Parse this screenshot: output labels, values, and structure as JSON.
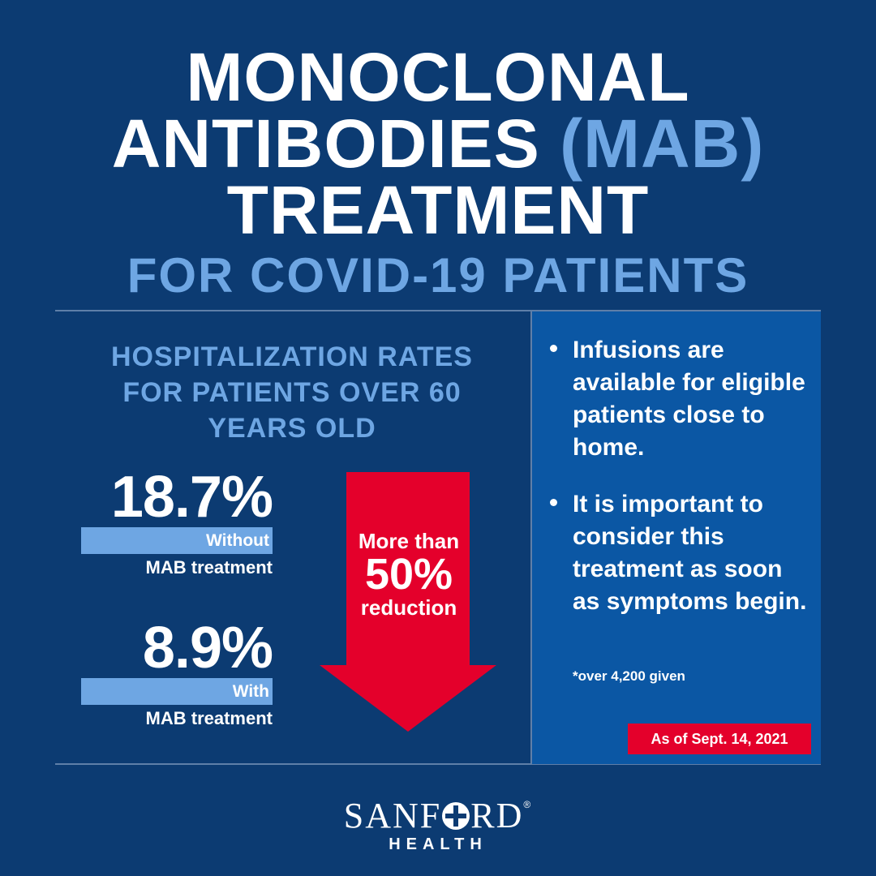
{
  "title": {
    "line1": "MONOCLONAL",
    "line2_main": "ANTIBODIES",
    "line2_accent": "(MAB)",
    "line3": "TREATMENT",
    "subtitle": "FOR COVID-19 PATIENTS"
  },
  "stats": {
    "heading": "HOSPITALIZATION RATES FOR PATIENTS OVER 60 YEARS OLD",
    "without": {
      "value": "18.7%",
      "bar_label": "Without",
      "caption": "MAB treatment"
    },
    "with": {
      "value": "8.9%",
      "bar_label": "With",
      "caption": "MAB treatment"
    }
  },
  "arrow": {
    "line1": "More than",
    "line2": "50%",
    "line3": "reduction"
  },
  "info": {
    "bullets": [
      "Infusions are available for eligible patients close to home.",
      "It is important to consider this treatment as soon as symptoms begin."
    ],
    "footnote": "*over 4,200 given",
    "date_badge": "As of Sept. 14, 2021"
  },
  "logo": {
    "brand_left": "SANF",
    "brand_right": "RD",
    "reg": "®",
    "sub": "HEALTH"
  },
  "colors": {
    "background": "#0c3b72",
    "accent_blue": "#6ea6e3",
    "panel_blue": "#0b57a4",
    "arrow_red": "#e4002b"
  }
}
